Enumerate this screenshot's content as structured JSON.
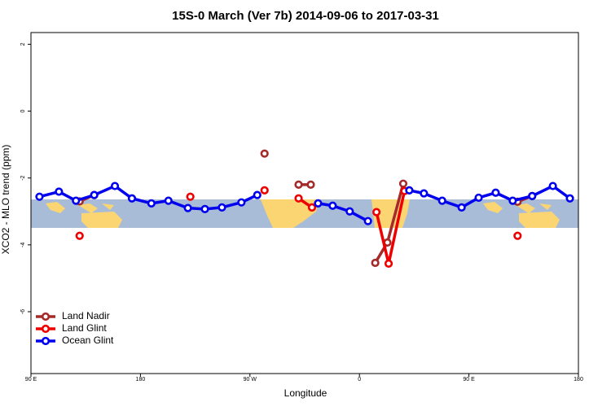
{
  "chart_data": {
    "type": "line",
    "title": "15S-0 March (Ver 7b)   2014-09-06 to 2017-03-31",
    "x_label": "Longitude",
    "y_label": "XCO2 - MLO trend (ppm)",
    "xlim": [
      90,
      540
    ],
    "ylim": [
      -7.85,
      2.35
    ],
    "xticks": [
      {
        "value": 90,
        "label": "90 E"
      },
      {
        "value": 180,
        "label": "180"
      },
      {
        "value": 270,
        "label": "90 W"
      },
      {
        "value": 360,
        "label": "0"
      },
      {
        "value": 450,
        "label": "90 E"
      },
      {
        "value": 540,
        "label": "180"
      }
    ],
    "yticks": [
      2,
      0,
      -2,
      -4,
      -6
    ],
    "legend": "bottom-left",
    "series": [
      {
        "name": "Land Nadir",
        "color": "#a52a2a",
        "x": [
          130,
          142,
          null,
          282,
          null,
          310,
          320,
          null,
          373,
          383,
          396,
          null,
          490,
          502
        ],
        "values": [
          -2.7,
          -2.51,
          null,
          -1.27,
          null,
          -2.2,
          -2.2,
          null,
          -4.54,
          -3.93,
          -2.17,
          null,
          -2.71,
          -2.54
        ]
      },
      {
        "name": "Land Glint",
        "color": "#ee0000",
        "x": [
          130,
          null,
          221,
          null,
          282,
          null,
          310,
          321,
          null,
          374,
          384,
          397,
          null,
          490
        ],
        "values": [
          -3.73,
          null,
          -2.56,
          null,
          -2.37,
          null,
          -2.61,
          -2.88,
          null,
          -3.02,
          -4.56,
          -2.39,
          null,
          -3.73
        ]
      },
      {
        "name": "Ocean Glint",
        "color": "#0000ee",
        "x": [
          97,
          113,
          127,
          142,
          159,
          173,
          189,
          203,
          219,
          233,
          247,
          263,
          276,
          null,
          326,
          338,
          352,
          367,
          null,
          401,
          413,
          428,
          444,
          458,
          472,
          486,
          502,
          519,
          533
        ],
        "values": [
          -2.56,
          -2.41,
          -2.68,
          -2.51,
          -2.24,
          -2.61,
          -2.76,
          -2.68,
          -2.9,
          -2.93,
          -2.88,
          -2.73,
          -2.51,
          null,
          -2.76,
          -2.83,
          -3.0,
          -3.29,
          null,
          -2.37,
          -2.46,
          -2.68,
          -2.88,
          -2.59,
          -2.44,
          -2.68,
          -2.54,
          -2.24,
          -2.61
        ]
      }
    ]
  }
}
